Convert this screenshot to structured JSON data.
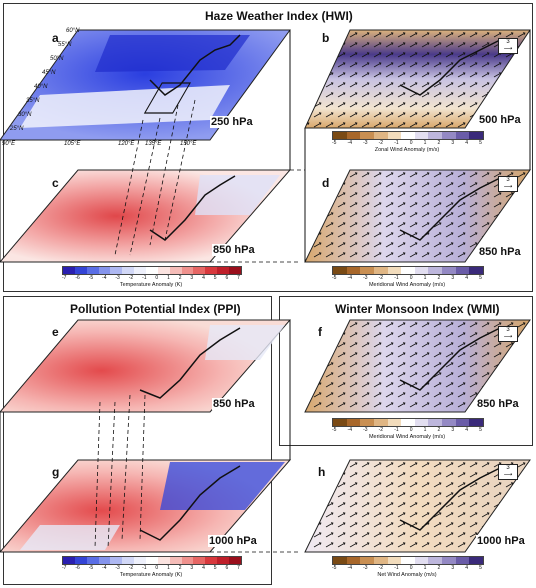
{
  "titles": {
    "hwi": "Haze Weather Index (HWI)",
    "ppi": "Pollution Potential Index (PPI)",
    "wmi": "Winter Monsoon Index (WMI)"
  },
  "panels": {
    "a": {
      "label": "a",
      "level": "250 hPa"
    },
    "b": {
      "label": "b",
      "level": "500 hPa"
    },
    "c": {
      "label": "c",
      "level": "850 hPa"
    },
    "d": {
      "label": "d",
      "level": "850 hPa"
    },
    "e": {
      "label": "e",
      "level": "850 hPa"
    },
    "f": {
      "label": "f",
      "level": "850 hPa"
    },
    "g": {
      "label": "g",
      "level": "1000 hPa"
    },
    "h": {
      "label": "h",
      "level": "1000 hPa"
    }
  },
  "lat_labels": [
    "60°N",
    "55°N",
    "50°N",
    "45°N",
    "40°N",
    "35°N",
    "30°N",
    "25°N"
  ],
  "lon_labels": [
    "90°E",
    "105°E",
    "120°E",
    "135°E",
    "150°E"
  ],
  "colorbars": {
    "temp_ticks": [
      "-7",
      "-6",
      "-5",
      "-4",
      "-3",
      "-2",
      "-1",
      "0",
      "1",
      "2",
      "3",
      "4",
      "5",
      "6",
      "7"
    ],
    "wind_ticks": [
      "-5",
      "-4",
      "-3",
      "-2",
      "-1",
      "0",
      "1",
      "2",
      "3",
      "4",
      "5"
    ],
    "temp_title": "Temperature Anomaly (K)",
    "zonal_title": "Zonal Wind Anomaly (m/s)",
    "meridional_title": "Meridional Wind Anomaly (m/s)",
    "net_title": "Net Wind Anomaly (m/s)"
  },
  "ref_vector": "3",
  "colors": {
    "warm": "#d8313a",
    "cold": "#2434d6",
    "brown": "#a8672a",
    "purple": "#3a2a7a"
  }
}
